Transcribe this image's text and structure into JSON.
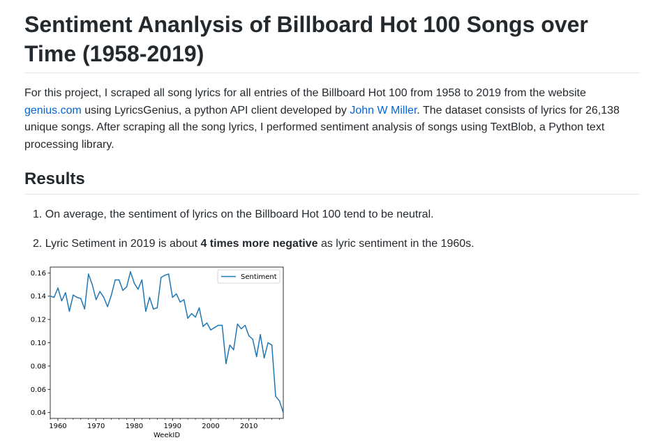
{
  "title": "Sentiment Ananlysis of Billboard Hot 100 Songs over Time (1958-2019)",
  "intro": {
    "t1": "For this project, I scraped all song lyrics for all entries of the Billboard Hot 100 from 1958 to 2019 from the website ",
    "link1": "genius.com",
    "t2": " using LyricsGenius, a python API client developed by ",
    "link2": "John W Miller",
    "t3": ". The dataset consists of lyrics for 26,138 unique songs. After scraping all the song lyrics, I performed sentiment analysis of songs using TextBlob, a Python text processing library."
  },
  "results": {
    "heading": "Results",
    "item1": {
      "num": "1.",
      "text": "On average, the sentiment of lyrics on the Billboard Hot 100 tend to be neutral."
    },
    "item2": {
      "num": "2.",
      "pre": "Lyric Setiment in 2019 is about ",
      "bold": "4 times more negative",
      "post": " as lyric sentiment in the 1960s."
    }
  },
  "colors": {
    "line": "#1f77b4",
    "link": "#0366d6"
  },
  "chart_data": {
    "type": "line",
    "title": "",
    "xlabel": "WeekID",
    "ylabel": "",
    "xlim": [
      1958,
      2019
    ],
    "ylim": [
      0.035,
      0.165
    ],
    "xticks": [
      1960,
      1970,
      1980,
      1990,
      2000,
      2010
    ],
    "yticks": [
      0.04,
      0.06,
      0.08,
      0.1,
      0.12,
      0.14,
      0.16
    ],
    "ytick_labels": [
      "0.04",
      "0.06",
      "0.08",
      "0.10",
      "0.12",
      "0.14",
      "0.16"
    ],
    "legend": "top-right",
    "grid": false,
    "series": [
      {
        "name": "Sentiment",
        "x": [
          1958,
          1959,
          1960,
          1961,
          1962,
          1963,
          1964,
          1965,
          1966,
          1967,
          1968,
          1969,
          1970,
          1971,
          1972,
          1973,
          1974,
          1975,
          1976,
          1977,
          1978,
          1979,
          1980,
          1981,
          1982,
          1983,
          1984,
          1985,
          1986,
          1987,
          1988,
          1989,
          1990,
          1991,
          1992,
          1993,
          1994,
          1995,
          1996,
          1997,
          1998,
          1999,
          2000,
          2001,
          2002,
          2003,
          2004,
          2005,
          2006,
          2007,
          2008,
          2009,
          2010,
          2011,
          2012,
          2013,
          2014,
          2015,
          2016,
          2017,
          2018,
          2019
        ],
        "values": [
          0.14,
          0.139,
          0.147,
          0.136,
          0.143,
          0.127,
          0.141,
          0.139,
          0.138,
          0.129,
          0.159,
          0.15,
          0.137,
          0.144,
          0.139,
          0.131,
          0.141,
          0.154,
          0.154,
          0.145,
          0.148,
          0.161,
          0.151,
          0.146,
          0.154,
          0.127,
          0.139,
          0.129,
          0.13,
          0.156,
          0.158,
          0.159,
          0.139,
          0.142,
          0.135,
          0.137,
          0.121,
          0.125,
          0.122,
          0.13,
          0.114,
          0.117,
          0.111,
          0.113,
          0.115,
          0.115,
          0.082,
          0.098,
          0.094,
          0.116,
          0.112,
          0.115,
          0.106,
          0.103,
          0.088,
          0.107,
          0.087,
          0.1,
          0.098,
          0.054,
          0.05,
          0.04
        ]
      }
    ]
  }
}
